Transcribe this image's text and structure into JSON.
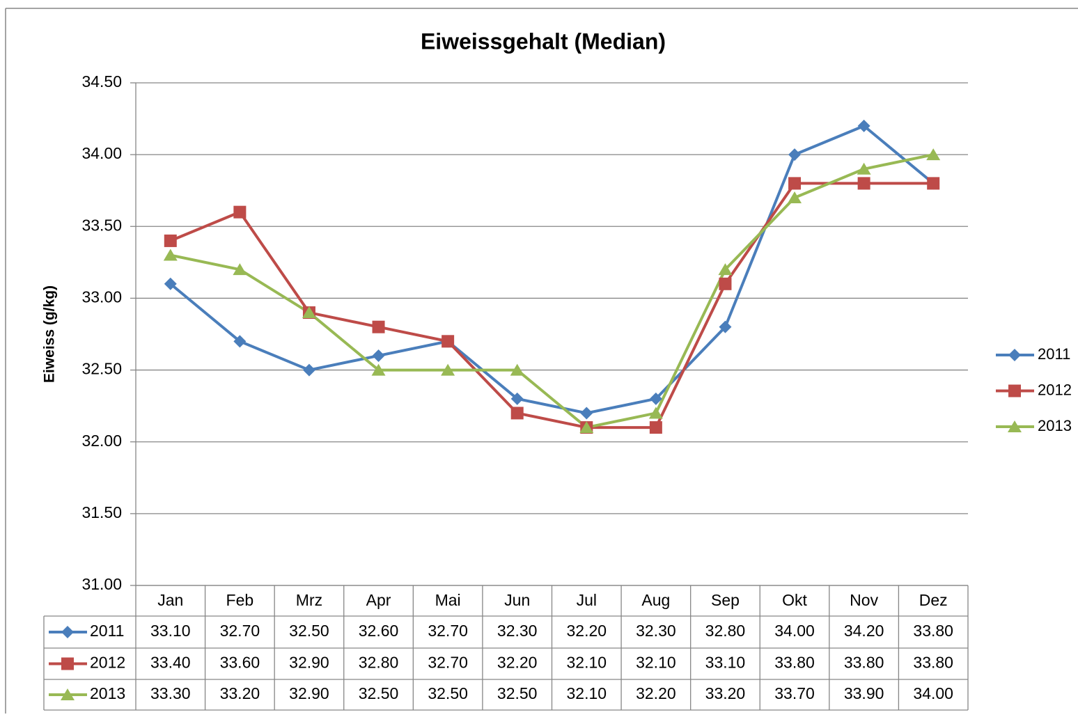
{
  "chart_data": {
    "type": "line",
    "title": "Eiweissgehalt  (Median)",
    "y_label": "Eiweiss (g/kg)",
    "categories": [
      "Jan",
      "Feb",
      "Mrz",
      "Apr",
      "Mai",
      "Jun",
      "Jul",
      "Aug",
      "Sep",
      "Okt",
      "Nov",
      "Dez"
    ],
    "series": [
      {
        "name": "2011",
        "color": "#4a7ebb",
        "marker": "diamond",
        "values": [
          33.1,
          32.7,
          32.5,
          32.6,
          32.7,
          32.3,
          32.2,
          32.3,
          32.8,
          34.0,
          34.2,
          33.8
        ],
        "value_labels": [
          "33.10",
          "32.70",
          "32.50",
          "32.60",
          "32.70",
          "32.30",
          "32.20",
          "32.30",
          "32.80",
          "34.00",
          "34.20",
          "33.80"
        ]
      },
      {
        "name": "2012",
        "color": "#be4b48",
        "marker": "square",
        "values": [
          33.4,
          33.6,
          32.9,
          32.8,
          32.7,
          32.2,
          32.1,
          32.1,
          33.1,
          33.8,
          33.8,
          33.8
        ],
        "value_labels": [
          "33.40",
          "33.60",
          "32.90",
          "32.80",
          "32.70",
          "32.20",
          "32.10",
          "32.10",
          "33.10",
          "33.80",
          "33.80",
          "33.80"
        ]
      },
      {
        "name": "2013",
        "color": "#98b954",
        "marker": "triangle",
        "values": [
          33.3,
          33.2,
          32.9,
          32.5,
          32.5,
          32.5,
          32.1,
          32.2,
          33.2,
          33.7,
          33.9,
          34.0
        ],
        "value_labels": [
          "33.30",
          "33.20",
          "32.90",
          "32.50",
          "32.50",
          "32.50",
          "32.10",
          "32.20",
          "33.20",
          "33.70",
          "33.90",
          "34.00"
        ]
      }
    ],
    "ylim": [
      31,
      34.5
    ],
    "yticks": [
      {
        "value": 31,
        "label": "31.00"
      },
      {
        "value": 31.5,
        "label": "31.50"
      },
      {
        "value": 32,
        "label": "32.00"
      },
      {
        "value": 32.5,
        "label": "32.50"
      },
      {
        "value": 33,
        "label": "33.00"
      },
      {
        "value": 33.5,
        "label": "33.50"
      },
      {
        "value": 34,
        "label": "34.00"
      },
      {
        "value": 34.5,
        "label": "34.50"
      }
    ],
    "grid": true,
    "legend": "right",
    "data_table": true
  }
}
